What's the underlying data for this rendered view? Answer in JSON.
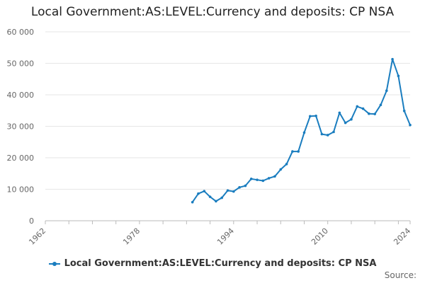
{
  "title": "Local Government:AS:LEVEL:Currency and deposits: CP NSA",
  "source_label": "Source:",
  "colors": {
    "series": "#1a7dbf",
    "grid": "#e6e6e6",
    "axis_text": "#666666"
  },
  "chart_data": {
    "type": "line",
    "title": "Local Government:AS:LEVEL:Currency and deposits: CP NSA",
    "xlabel": "",
    "ylabel": "",
    "xlim": [
      1962,
      2024
    ],
    "ylim": [
      0,
      60000
    ],
    "x_ticks": [
      1962,
      1978,
      1994,
      2010,
      2024
    ],
    "y_ticks": [
      0,
      10000,
      20000,
      30000,
      40000,
      50000,
      60000
    ],
    "y_tick_labels": [
      "0",
      "10 000",
      "20 000",
      "30 000",
      "40 000",
      "50 000",
      "60 000"
    ],
    "grid": "horizontal",
    "legend_position": "bottom",
    "series": [
      {
        "name": "Local Government:AS:LEVEL:Currency and deposits: CP NSA",
        "x": [
          1987,
          1988,
          1989,
          1990,
          1991,
          1992,
          1993,
          1994,
          1995,
          1996,
          1997,
          1998,
          1999,
          2000,
          2001,
          2002,
          2003,
          2004,
          2005,
          2006,
          2007,
          2008,
          2009,
          2010,
          2011,
          2012,
          2013,
          2014,
          2015,
          2016,
          2017,
          2018,
          2019,
          2020,
          2021,
          2022,
          2023,
          2024
        ],
        "values": [
          5900,
          8600,
          9400,
          7600,
          6200,
          7300,
          9600,
          9300,
          10600,
          11100,
          13300,
          13000,
          12700,
          13500,
          14100,
          16300,
          18000,
          22000,
          22000,
          28000,
          33200,
          33300,
          27500,
          27200,
          28200,
          34300,
          31100,
          32200,
          36300,
          35600,
          34000,
          33900,
          36800,
          41300,
          51300,
          46000,
          34900,
          30400
        ]
      }
    ]
  }
}
